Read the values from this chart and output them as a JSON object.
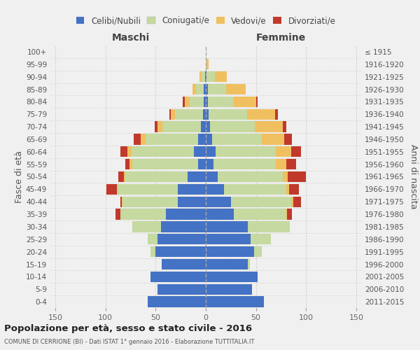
{
  "age_groups": [
    "0-4",
    "5-9",
    "10-14",
    "15-19",
    "20-24",
    "25-29",
    "30-34",
    "35-39",
    "40-44",
    "45-49",
    "50-54",
    "55-59",
    "60-64",
    "65-69",
    "70-74",
    "75-79",
    "80-84",
    "85-89",
    "90-94",
    "95-99",
    "100+"
  ],
  "birth_years": [
    "2011-2015",
    "2006-2010",
    "2001-2005",
    "1996-2000",
    "1991-1995",
    "1986-1990",
    "1981-1985",
    "1976-1980",
    "1971-1975",
    "1966-1970",
    "1961-1965",
    "1956-1960",
    "1951-1955",
    "1946-1950",
    "1941-1945",
    "1936-1940",
    "1931-1935",
    "1926-1930",
    "1921-1925",
    "1916-1920",
    "≤ 1915"
  ],
  "maschi": {
    "celibi": [
      58,
      48,
      55,
      44,
      50,
      48,
      45,
      40,
      28,
      28,
      18,
      8,
      12,
      8,
      5,
      3,
      2,
      2,
      1,
      0,
      0
    ],
    "coniugati": [
      0,
      0,
      0,
      0,
      5,
      10,
      28,
      45,
      55,
      60,
      62,
      65,
      62,
      52,
      38,
      28,
      14,
      8,
      3,
      0,
      0
    ],
    "vedovi": [
      0,
      0,
      0,
      0,
      0,
      0,
      0,
      0,
      1,
      1,
      2,
      3,
      4,
      5,
      5,
      4,
      5,
      3,
      2,
      0,
      0
    ],
    "divorziati": [
      0,
      0,
      0,
      0,
      0,
      0,
      0,
      5,
      1,
      10,
      5,
      4,
      7,
      7,
      3,
      1,
      2,
      0,
      0,
      0,
      0
    ]
  },
  "femmine": {
    "nubili": [
      58,
      46,
      52,
      42,
      48,
      45,
      42,
      28,
      25,
      18,
      12,
      8,
      10,
      6,
      4,
      3,
      2,
      2,
      1,
      0,
      0
    ],
    "coniugate": [
      0,
      0,
      0,
      2,
      8,
      20,
      42,
      52,
      60,
      62,
      65,
      62,
      60,
      50,
      45,
      38,
      26,
      18,
      8,
      1,
      0
    ],
    "vedove": [
      0,
      0,
      0,
      0,
      0,
      0,
      0,
      1,
      2,
      3,
      5,
      10,
      15,
      22,
      28,
      28,
      22,
      20,
      12,
      2,
      0
    ],
    "divorziate": [
      0,
      0,
      0,
      0,
      0,
      0,
      0,
      5,
      8,
      10,
      18,
      10,
      10,
      8,
      3,
      3,
      2,
      0,
      0,
      0,
      0
    ]
  },
  "colors": {
    "celibi": "#4472c4",
    "coniugati": "#c5d9a0",
    "vedovi": "#f0c060",
    "divorziati": "#c0392b"
  },
  "xlim": 155,
  "title": "Popolazione per età, sesso e stato civile - 2016",
  "subtitle": "COMUNE DI CERRIONE (BI) - Dati ISTAT 1° gennaio 2016 - Elaborazione TUTTITALIA.IT",
  "ylabel_left": "Fasce di età",
  "ylabel_right": "Anni di nascita",
  "xlabel_maschi": "Maschi",
  "xlabel_femmine": "Femmine",
  "bg_color": "#f0f0f0",
  "grid_color": "#cccccc"
}
